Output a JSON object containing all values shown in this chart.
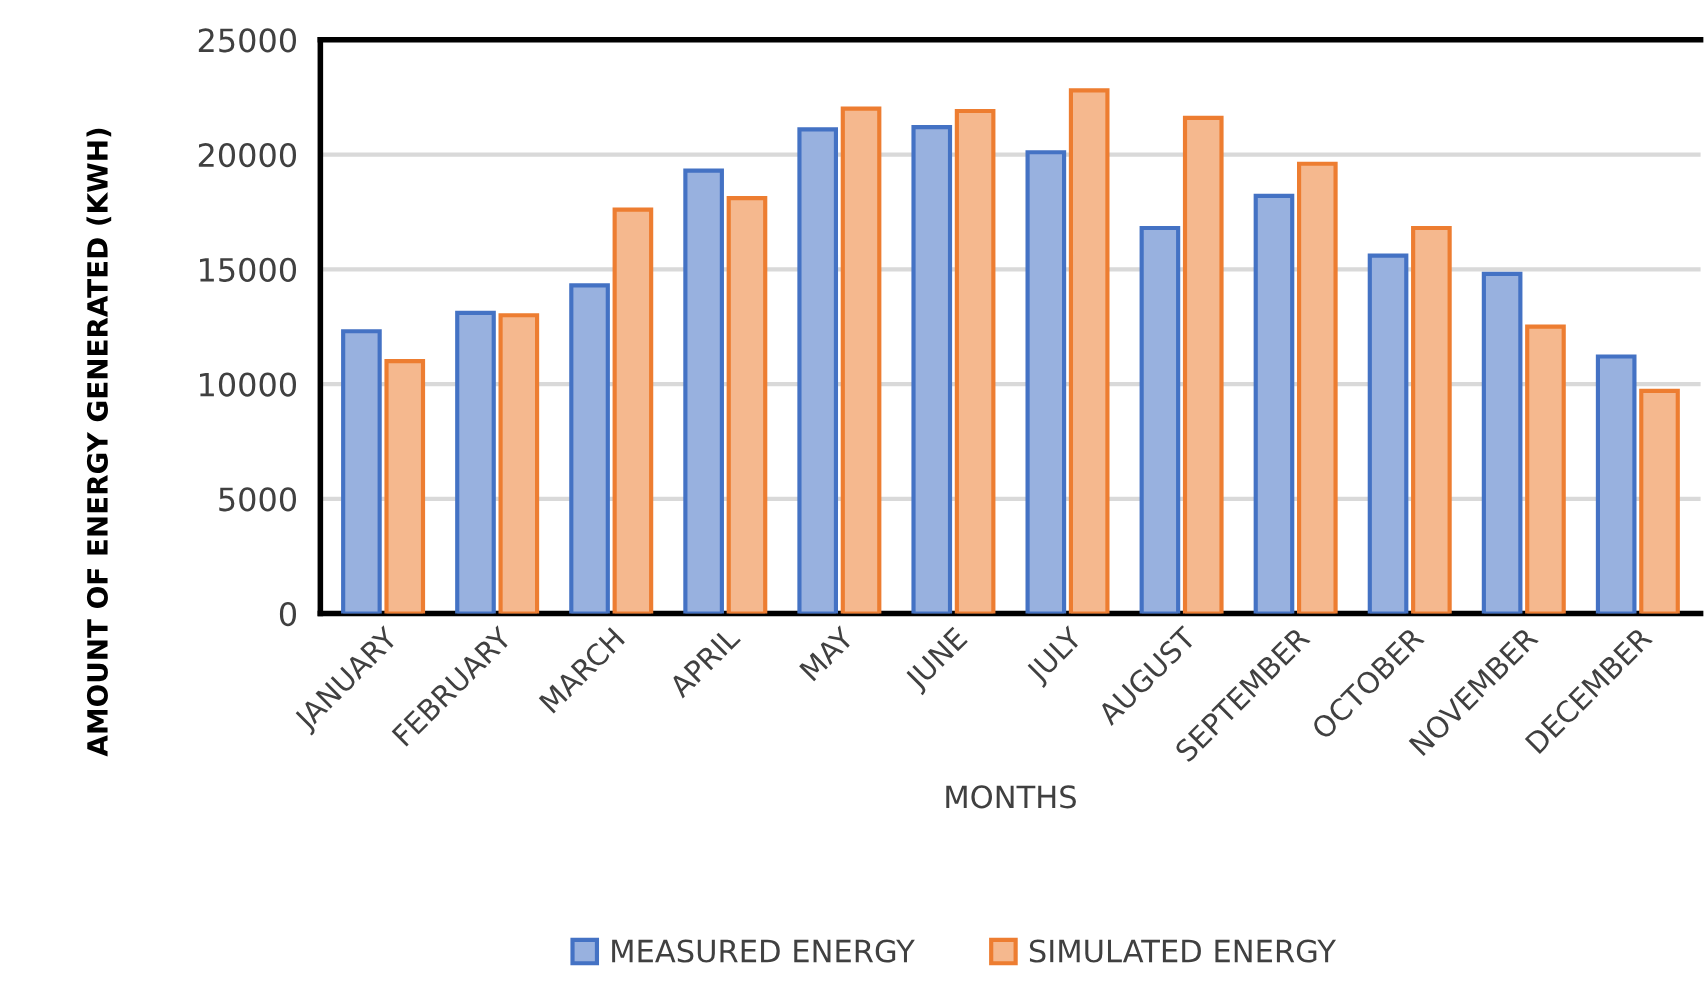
{
  "chart_data": {
    "type": "bar",
    "xlabel": "MONTHS",
    "ylabel": "AMOUNT OF ENERGY GENERATED (KWH)",
    "categories": [
      "JANUARY",
      "FEBRUARY",
      "MARCH",
      "APRIL",
      "MAY",
      "JUNE",
      "JULY",
      "AUGUST",
      "SEPTEMBER",
      "OCTOBER",
      "NOVEMBER",
      "DECEMBER"
    ],
    "series": [
      {
        "name": "MEASURED ENERGY",
        "color": "#4472c4",
        "values": [
          12300,
          13100,
          14300,
          19300,
          21100,
          21200,
          20100,
          16800,
          18200,
          15600,
          14800,
          11200
        ]
      },
      {
        "name": "SIMULATED ENERGY",
        "color": "#ed7d31",
        "values": [
          11000,
          13000,
          17600,
          18100,
          22000,
          21900,
          22800,
          21600,
          19600,
          16800,
          12500,
          9700
        ]
      }
    ],
    "ylim": [
      0,
      25000
    ],
    "yticks": [
      0,
      5000,
      10000,
      15000,
      20000,
      25000
    ],
    "grid": "y",
    "legend": "bottom"
  }
}
